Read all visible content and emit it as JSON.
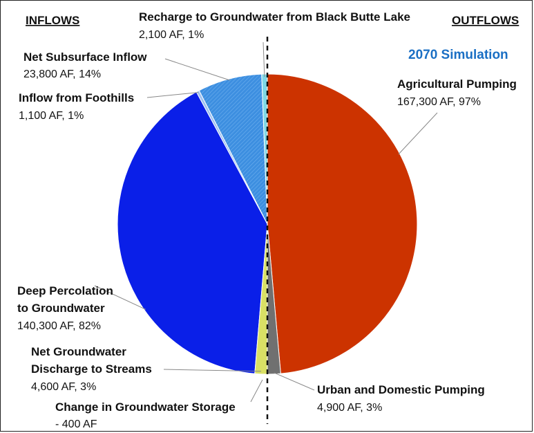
{
  "chart_data": {
    "type": "pie",
    "title": "2070 Simulation",
    "title_color": "#1a6fc4",
    "headers": {
      "left": "INFLOWS",
      "right": "OUTFLOWS"
    },
    "layout_note_words": "Two half-pies split by a vertical dashed line: inflows on the left half, outflows on the right half.",
    "inflows": [
      {
        "name": "Recharge to Groundwater from Black Butte Lake",
        "label_line1": "Recharge to Groundwater from Black Butte Lake",
        "label_line2": "",
        "value_text": "2,100 AF, 1%",
        "value_af": 2100,
        "percent": 1,
        "color": "#7fd8e6"
      },
      {
        "name": "Net Subsurface Inflow",
        "label_line1": "Net Subsurface Inflow",
        "label_line2": "",
        "value_text": "23,800 AF, 14%",
        "value_af": 23800,
        "percent": 14,
        "color": "#3d8fe0"
      },
      {
        "name": "Inflow from Foothills",
        "label_line1": "Inflow from Foothills",
        "label_line2": "",
        "value_text": "1,100 AF, 1%",
        "value_af": 1100,
        "percent": 1,
        "color": "#9fc2f0"
      },
      {
        "name": "Deep Percolation to Groundwater",
        "label_line1": "Deep Percolation",
        "label_line2": "to Groundwater",
        "value_text": "140,300 AF, 82%",
        "value_af": 140300,
        "percent": 82,
        "color": "#0a1fe8"
      },
      {
        "name": "Net Groundwater Discharge to Streams",
        "label_line1": "Net Groundwater",
        "label_line2": "Discharge to Streams",
        "value_text": "4,600 AF, 3%",
        "value_af": 4600,
        "percent": 3,
        "color": "#d9e065"
      }
    ],
    "outflows": [
      {
        "name": "Agricultural Pumping",
        "label_line1": "Agricultural Pumping",
        "label_line2": "",
        "value_text": "167,300 AF, 97%",
        "value_af": 167300,
        "percent": 97,
        "color": "#cc3300"
      },
      {
        "name": "Urban and Domestic Pumping",
        "label_line1": "Urban and Domestic Pumping",
        "label_line2": "",
        "value_text": "4,900 AF, 3%",
        "value_af": 4900,
        "percent": 3,
        "color": "#707070"
      }
    ],
    "storage_change": {
      "label": "Change in Groundwater Storage",
      "value_text": "- 400 AF",
      "value_af": -400
    }
  }
}
